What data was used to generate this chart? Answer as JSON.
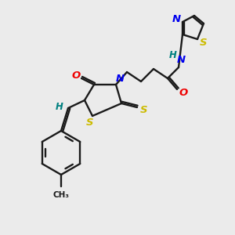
{
  "bg_color": "#ebebeb",
  "bond_color": "#1a1a1a",
  "colors": {
    "N": "#0000ee",
    "O": "#ee0000",
    "S": "#ccbb00",
    "H": "#008080",
    "C": "#1a1a1a"
  },
  "figsize": [
    3.0,
    3.0
  ],
  "dpi": 100
}
